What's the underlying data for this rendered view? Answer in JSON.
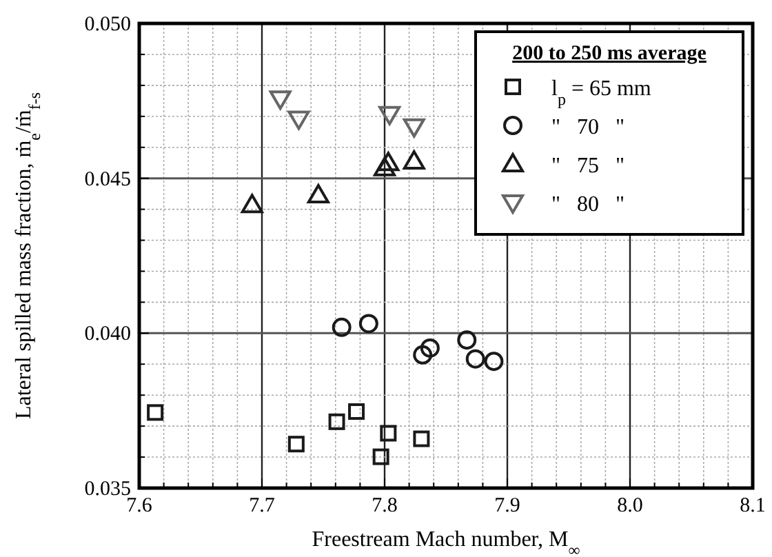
{
  "chart_data": {
    "type": "scatter",
    "xlabel": "Freestream Mach number, M$_{∞}$",
    "ylabel": "Lateral spilled mass fraction, ṁ$_{e}$/ṁ$_{f-s}$",
    "legend_title": "200 to 250 ms average",
    "legend": "top right",
    "grid": true,
    "xlim": [
      7.6,
      8.1
    ],
    "ylim": [
      0.035,
      0.05
    ],
    "xticks": [
      {
        "value": 7.6,
        "label": "7.6"
      },
      {
        "value": 7.62,
        "label": null
      },
      {
        "value": 7.64,
        "label": null
      },
      {
        "value": 7.66,
        "label": null
      },
      {
        "value": 7.68,
        "label": null
      },
      {
        "value": 7.7,
        "label": "7.7"
      },
      {
        "value": 7.72,
        "label": null
      },
      {
        "value": 7.74,
        "label": null
      },
      {
        "value": 7.76,
        "label": null
      },
      {
        "value": 7.78,
        "label": null
      },
      {
        "value": 7.8,
        "label": "7.8"
      },
      {
        "value": 7.82,
        "label": null
      },
      {
        "value": 7.84,
        "label": null
      },
      {
        "value": 7.86,
        "label": null
      },
      {
        "value": 7.88,
        "label": null
      },
      {
        "value": 7.9,
        "label": "7.9"
      },
      {
        "value": 7.92,
        "label": null
      },
      {
        "value": 7.94,
        "label": null
      },
      {
        "value": 7.96,
        "label": null
      },
      {
        "value": 7.98,
        "label": null
      },
      {
        "value": 8.0,
        "label": "8.0"
      },
      {
        "value": 8.02,
        "label": null
      },
      {
        "value": 8.04,
        "label": null
      },
      {
        "value": 8.06,
        "label": null
      },
      {
        "value": 8.08,
        "label": null
      },
      {
        "value": 8.1,
        "label": "8.1"
      }
    ],
    "yticks": [
      {
        "value": 0.035,
        "label": "0.035"
      },
      {
        "value": 0.036,
        "label": null
      },
      {
        "value": 0.037,
        "label": null
      },
      {
        "value": 0.038,
        "label": null
      },
      {
        "value": 0.039,
        "label": null
      },
      {
        "value": 0.04,
        "label": "0.040"
      },
      {
        "value": 0.041,
        "label": null
      },
      {
        "value": 0.042,
        "label": null
      },
      {
        "value": 0.043,
        "label": null
      },
      {
        "value": 0.044,
        "label": null
      },
      {
        "value": 0.045,
        "label": "0.045"
      },
      {
        "value": 0.046,
        "label": null
      },
      {
        "value": 0.047,
        "label": null
      },
      {
        "value": 0.048,
        "label": null
      },
      {
        "value": 0.049,
        "label": null
      },
      {
        "value": 0.05,
        "label": "0.050"
      }
    ],
    "series": [
      {
        "name": "l$_{p}$ = 65 mm",
        "color": "#1a1a1a",
        "marker": "square",
        "x": [
          7.613,
          7.728,
          7.761,
          7.777,
          7.797,
          7.803,
          7.83
        ],
        "values": [
          0.03744,
          0.03642,
          0.03714,
          0.03747,
          0.03601,
          0.03677,
          0.03659
        ]
      },
      {
        "name": "\"   70   \"",
        "color": "#1a1a1a",
        "marker": "circle",
        "x": [
          7.765,
          7.787,
          7.831,
          7.837,
          7.867,
          7.874,
          7.889
        ],
        "values": [
          0.04019,
          0.04031,
          0.0393,
          0.03952,
          0.03978,
          0.03917,
          0.03909
        ]
      },
      {
        "name": "\"   75   \"",
        "color": "#1a1a1a",
        "marker": "triangle",
        "x": [
          7.692,
          7.746,
          7.8,
          7.803,
          7.824
        ],
        "values": [
          0.04414,
          0.04446,
          0.04533,
          0.0455,
          0.04555
        ]
      },
      {
        "name": "\"   80   \"",
        "color": "#666666",
        "marker": "triangle-down",
        "x": [
          7.715,
          7.73,
          7.804,
          7.824
        ],
        "values": [
          0.04757,
          0.04692,
          0.04707,
          0.04667
        ]
      }
    ]
  }
}
